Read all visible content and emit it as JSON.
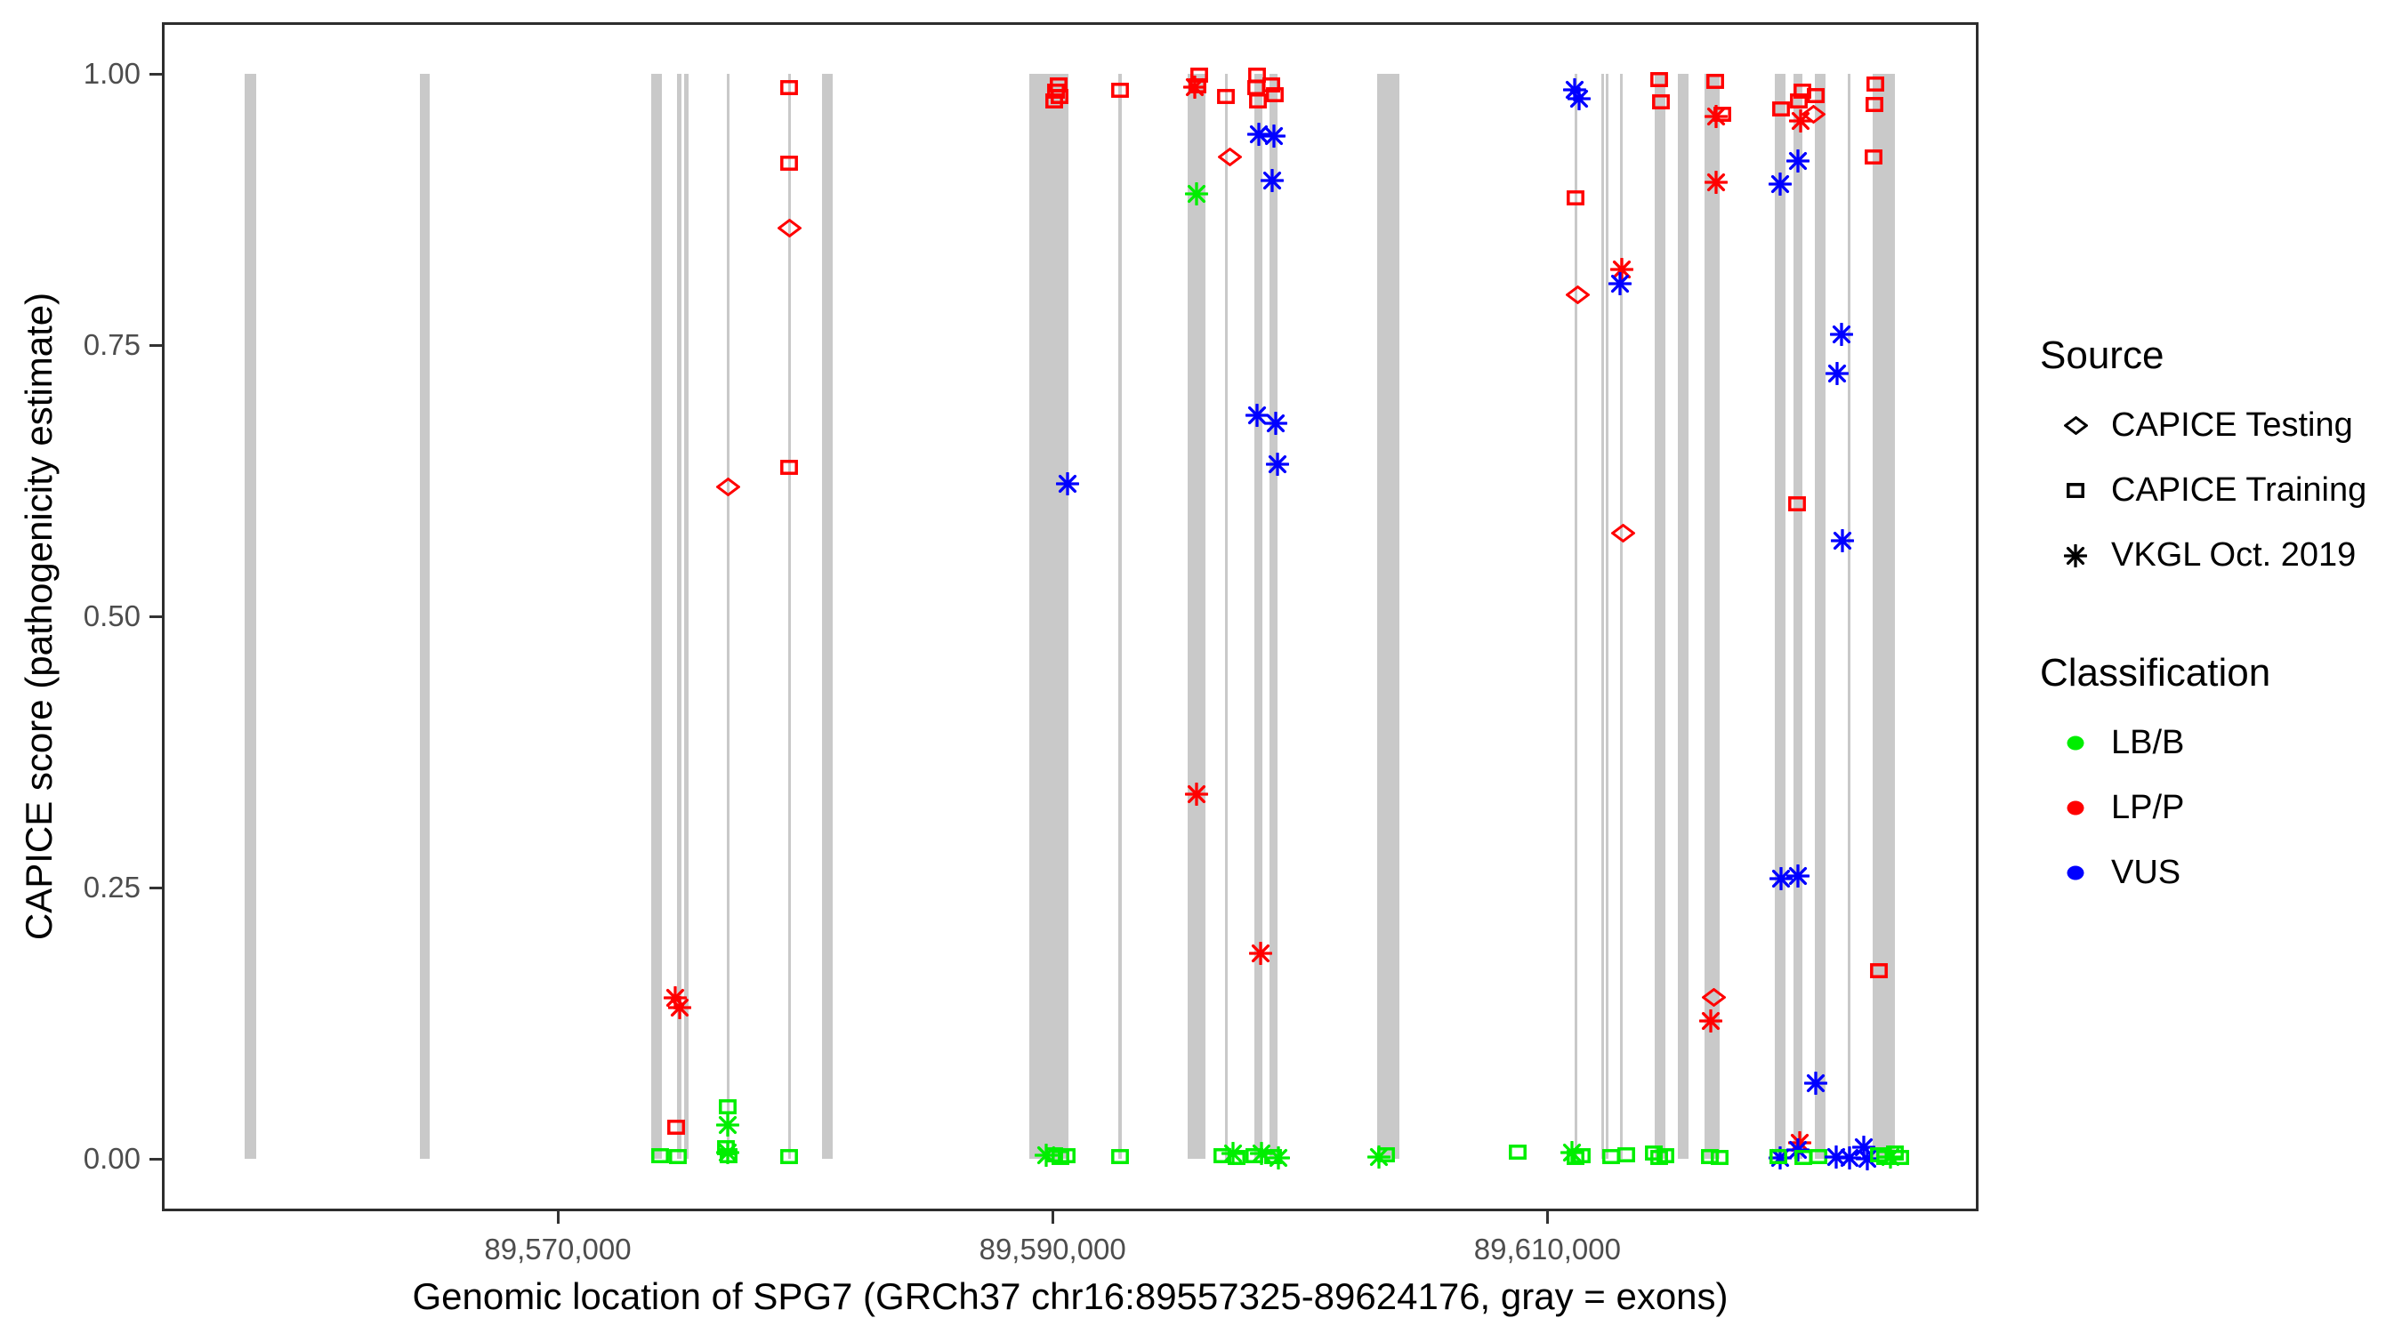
{
  "chart_data": {
    "type": "scatter",
    "title": "",
    "xlabel": "Genomic location of SPG7 (GRCh37 chr16:89557325-89624176, gray = exons)",
    "ylabel": "CAPICE score (pathogenicity estimate)",
    "xlim": [
      89553990,
      89627450
    ],
    "ylim": [
      -0.05,
      1.05
    ],
    "grid": "off",
    "x_ticks": [
      {
        "value": 89570000,
        "label": "89,570,000"
      },
      {
        "value": 89590000,
        "label": "89,590,000"
      },
      {
        "value": 89610000,
        "label": "89,610,000"
      }
    ],
    "y_ticks": [
      {
        "value": 0.0,
        "label": "0.00"
      },
      {
        "value": 0.25,
        "label": "0.25"
      },
      {
        "value": 0.5,
        "label": "0.50"
      },
      {
        "value": 0.75,
        "label": "0.75"
      },
      {
        "value": 1.0,
        "label": "1.00"
      }
    ],
    "legend": {
      "position": "right",
      "source": {
        "title": "Source",
        "items": [
          {
            "shape": "diamond",
            "label": "CAPICE Testing"
          },
          {
            "shape": "square",
            "label": "CAPICE Training"
          },
          {
            "shape": "asterisk",
            "label": "VKGL Oct. 2019"
          }
        ]
      },
      "classification": {
        "title": "Classification",
        "items": [
          {
            "class": "LB/B",
            "label": "LB/B"
          },
          {
            "class": "LP/P",
            "label": "LP/P"
          },
          {
            "class": "VUS",
            "label": "VUS"
          }
        ]
      }
    },
    "class_colors": {
      "LB/B": "#00ee00",
      "LP/P": "#ff0000",
      "VUS": "#0000ff"
    },
    "source_shapes": {
      "testing": "diamond",
      "training": "square",
      "vkgl": "asterisk"
    },
    "source_labels": {
      "testing": "CAPICE Testing",
      "training": "CAPICE Training",
      "vkgl": "VKGL Oct. 2019"
    },
    "exon_color": "#c9c9c9",
    "exons": [
      {
        "pos": 89557590,
        "width_bp": 470
      },
      {
        "pos": 89564640,
        "width_bp": 400
      },
      {
        "pos": 89573990,
        "width_bp": 430
      },
      {
        "pos": 89574890,
        "width_bp": 180
      },
      {
        "pos": 89575180,
        "width_bp": 180
      },
      {
        "pos": 89576870,
        "width_bp": 110
      },
      {
        "pos": 89579350,
        "width_bp": 110
      },
      {
        "pos": 89580900,
        "width_bp": 430
      },
      {
        "pos": 89589860,
        "width_bp": 1580
      },
      {
        "pos": 89592730,
        "width_bp": 140
      },
      {
        "pos": 89595830,
        "width_bp": 720
      },
      {
        "pos": 89597010,
        "width_bp": 110
      },
      {
        "pos": 89598310,
        "width_bp": 320
      },
      {
        "pos": 89598920,
        "width_bp": 320
      },
      {
        "pos": 89603560,
        "width_bp": 900
      },
      {
        "pos": 89611150,
        "width_bp": 110
      },
      {
        "pos": 89612230,
        "width_bp": 100
      },
      {
        "pos": 89612410,
        "width_bp": 100
      },
      {
        "pos": 89612990,
        "width_bp": 110
      },
      {
        "pos": 89614560,
        "width_bp": 430
      },
      {
        "pos": 89615500,
        "width_bp": 430
      },
      {
        "pos": 89616650,
        "width_bp": 600
      },
      {
        "pos": 89619420,
        "width_bp": 430
      },
      {
        "pos": 89620110,
        "width_bp": 360
      },
      {
        "pos": 89621040,
        "width_bp": 430
      },
      {
        "pos": 89622190,
        "width_bp": 110
      },
      {
        "pos": 89623590,
        "width_bp": 900
      }
    ],
    "points": [
      {
        "pos": 89574140,
        "score": 0.003,
        "src": "training",
        "cls": "LB/B"
      },
      {
        "pos": 89574860,
        "score": 0.002,
        "src": "training",
        "cls": "LB/B"
      },
      {
        "pos": 89574750,
        "score": 0.148,
        "src": "vkgl",
        "cls": "LP/P"
      },
      {
        "pos": 89574930,
        "score": 0.139,
        "src": "vkgl",
        "cls": "LP/P"
      },
      {
        "pos": 89574790,
        "score": 0.029,
        "src": "training",
        "cls": "LP/P"
      },
      {
        "pos": 89576870,
        "score": 0.619,
        "src": "testing",
        "cls": "LP/P"
      },
      {
        "pos": 89576850,
        "score": 0.048,
        "src": "training",
        "cls": "LB/B"
      },
      {
        "pos": 89576850,
        "score": 0.031,
        "src": "vkgl",
        "cls": "LB/B"
      },
      {
        "pos": 89576800,
        "score": 0.01,
        "src": "training",
        "cls": "LB/B"
      },
      {
        "pos": 89576920,
        "score": 0.003,
        "src": "training",
        "cls": "LB/B"
      },
      {
        "pos": 89576870,
        "score": 0.006,
        "src": "vkgl",
        "cls": "LB/B"
      },
      {
        "pos": 89579350,
        "score": 0.987,
        "src": "training",
        "cls": "LP/P"
      },
      {
        "pos": 89579350,
        "score": 0.918,
        "src": "training",
        "cls": "LP/P"
      },
      {
        "pos": 89579350,
        "score": 0.858,
        "src": "testing",
        "cls": "LP/P"
      },
      {
        "pos": 89579350,
        "score": 0.637,
        "src": "training",
        "cls": "LP/P"
      },
      {
        "pos": 89579350,
        "score": 0.002,
        "src": "training",
        "cls": "LB/B"
      },
      {
        "pos": 89590250,
        "score": 0.99,
        "src": "training",
        "cls": "LP/P"
      },
      {
        "pos": 89590140,
        "score": 0.984,
        "src": "training",
        "cls": "LP/P"
      },
      {
        "pos": 89590290,
        "score": 0.979,
        "src": "training",
        "cls": "LP/P"
      },
      {
        "pos": 89590070,
        "score": 0.975,
        "src": "training",
        "cls": "LP/P"
      },
      {
        "pos": 89590610,
        "score": 0.622,
        "src": "vkgl",
        "cls": "VUS"
      },
      {
        "pos": 89589750,
        "score": 0.003,
        "src": "vkgl",
        "cls": "LB/B"
      },
      {
        "pos": 89590070,
        "score": 0.004,
        "src": "training",
        "cls": "LB/B"
      },
      {
        "pos": 89590320,
        "score": 0.001,
        "src": "training",
        "cls": "LB/B"
      },
      {
        "pos": 89590580,
        "score": 0.003,
        "src": "training",
        "cls": "LB/B"
      },
      {
        "pos": 89592730,
        "score": 0.985,
        "src": "training",
        "cls": "LP/P"
      },
      {
        "pos": 89592730,
        "score": 0.002,
        "src": "training",
        "cls": "LB/B"
      },
      {
        "pos": 89595940,
        "score": 0.999,
        "src": "training",
        "cls": "LP/P"
      },
      {
        "pos": 89595860,
        "score": 0.989,
        "src": "training",
        "cls": "LP/P"
      },
      {
        "pos": 89595750,
        "score": 0.988,
        "src": "vkgl",
        "cls": "LP/P"
      },
      {
        "pos": 89595830,
        "score": 0.889,
        "src": "vkgl",
        "cls": "LB/B"
      },
      {
        "pos": 89595830,
        "score": 0.336,
        "src": "vkgl",
        "cls": "LP/P"
      },
      {
        "pos": 89597010,
        "score": 0.979,
        "src": "training",
        "cls": "LP/P"
      },
      {
        "pos": 89597160,
        "score": 0.923,
        "src": "testing",
        "cls": "LP/P"
      },
      {
        "pos": 89596870,
        "score": 0.003,
        "src": "training",
        "cls": "LB/B"
      },
      {
        "pos": 89597440,
        "score": 0.001,
        "src": "training",
        "cls": "LB/B"
      },
      {
        "pos": 89597300,
        "score": 0.005,
        "src": "vkgl",
        "cls": "LB/B"
      },
      {
        "pos": 89598270,
        "score": 0.999,
        "src": "training",
        "cls": "LP/P"
      },
      {
        "pos": 89598230,
        "score": 0.987,
        "src": "training",
        "cls": "LP/P"
      },
      {
        "pos": 89598310,
        "score": 0.975,
        "src": "training",
        "cls": "LP/P"
      },
      {
        "pos": 89598340,
        "score": 0.944,
        "src": "vkgl",
        "cls": "VUS"
      },
      {
        "pos": 89598270,
        "score": 0.685,
        "src": "vkgl",
        "cls": "VUS"
      },
      {
        "pos": 89598410,
        "score": 0.189,
        "src": "vkgl",
        "cls": "LP/P"
      },
      {
        "pos": 89598170,
        "score": 0.003,
        "src": "training",
        "cls": "LB/B"
      },
      {
        "pos": 89598450,
        "score": 0.005,
        "src": "vkgl",
        "cls": "LB/B"
      },
      {
        "pos": 89598850,
        "score": 0.99,
        "src": "training",
        "cls": "LP/P"
      },
      {
        "pos": 89598990,
        "score": 0.981,
        "src": "training",
        "cls": "LP/P"
      },
      {
        "pos": 89598960,
        "score": 0.943,
        "src": "vkgl",
        "cls": "VUS"
      },
      {
        "pos": 89598890,
        "score": 0.902,
        "src": "vkgl",
        "cls": "VUS"
      },
      {
        "pos": 89599030,
        "score": 0.678,
        "src": "vkgl",
        "cls": "VUS"
      },
      {
        "pos": 89599100,
        "score": 0.64,
        "src": "vkgl",
        "cls": "VUS"
      },
      {
        "pos": 89598920,
        "score": 0.002,
        "src": "training",
        "cls": "LB/B"
      },
      {
        "pos": 89599120,
        "score": 0.001,
        "src": "vkgl",
        "cls": "LB/B"
      },
      {
        "pos": 89603200,
        "score": 0.002,
        "src": "vkgl",
        "cls": "LB/B"
      },
      {
        "pos": 89603480,
        "score": 0.004,
        "src": "training",
        "cls": "LB/B"
      },
      {
        "pos": 89608780,
        "score": 0.006,
        "src": "training",
        "cls": "LB/B"
      },
      {
        "pos": 89611110,
        "score": 0.985,
        "src": "vkgl",
        "cls": "VUS"
      },
      {
        "pos": 89611290,
        "score": 0.977,
        "src": "vkgl",
        "cls": "VUS"
      },
      {
        "pos": 89611150,
        "score": 0.886,
        "src": "training",
        "cls": "LP/P"
      },
      {
        "pos": 89611220,
        "score": 0.796,
        "src": "testing",
        "cls": "LP/P"
      },
      {
        "pos": 89611000,
        "score": 0.006,
        "src": "vkgl",
        "cls": "LB/B"
      },
      {
        "pos": 89611150,
        "score": 0.001,
        "src": "training",
        "cls": "LB/B"
      },
      {
        "pos": 89611400,
        "score": 0.003,
        "src": "training",
        "cls": "LB/B"
      },
      {
        "pos": 89612990,
        "score": 0.82,
        "src": "vkgl",
        "cls": "LP/P"
      },
      {
        "pos": 89612930,
        "score": 0.807,
        "src": "vkgl",
        "cls": "VUS"
      },
      {
        "pos": 89613050,
        "score": 0.577,
        "src": "testing",
        "cls": "LP/P"
      },
      {
        "pos": 89612590,
        "score": 0.002,
        "src": "training",
        "cls": "LB/B"
      },
      {
        "pos": 89613180,
        "score": 0.004,
        "src": "training",
        "cls": "LB/B"
      },
      {
        "pos": 89614500,
        "score": 0.995,
        "src": "training",
        "cls": "LP/P"
      },
      {
        "pos": 89614570,
        "score": 0.974,
        "src": "training",
        "cls": "LP/P"
      },
      {
        "pos": 89614300,
        "score": 0.005,
        "src": "training",
        "cls": "LB/B"
      },
      {
        "pos": 89614520,
        "score": 0.001,
        "src": "training",
        "cls": "LB/B"
      },
      {
        "pos": 89614750,
        "score": 0.003,
        "src": "training",
        "cls": "LB/B"
      },
      {
        "pos": 89616780,
        "score": 0.993,
        "src": "training",
        "cls": "LP/P"
      },
      {
        "pos": 89617060,
        "score": 0.963,
        "src": "training",
        "cls": "LP/P"
      },
      {
        "pos": 89616830,
        "score": 0.961,
        "src": "vkgl",
        "cls": "LP/P"
      },
      {
        "pos": 89616800,
        "score": 0.9,
        "src": "vkgl",
        "cls": "LP/P"
      },
      {
        "pos": 89616730,
        "score": 0.149,
        "src": "testing",
        "cls": "LP/P"
      },
      {
        "pos": 89616600,
        "score": 0.127,
        "src": "vkgl",
        "cls": "LP/P"
      },
      {
        "pos": 89616550,
        "score": 0.002,
        "src": "training",
        "cls": "LB/B"
      },
      {
        "pos": 89616950,
        "score": 0.001,
        "src": "training",
        "cls": "LB/B"
      },
      {
        "pos": 89619440,
        "score": 0.968,
        "src": "training",
        "cls": "LP/P"
      },
      {
        "pos": 89619400,
        "score": 0.898,
        "src": "vkgl",
        "cls": "VUS"
      },
      {
        "pos": 89619440,
        "score": 0.258,
        "src": "vkgl",
        "cls": "VUS"
      },
      {
        "pos": 89619400,
        "score": 0.001,
        "src": "vkgl",
        "cls": "VUS"
      },
      {
        "pos": 89619330,
        "score": 0.002,
        "src": "training",
        "cls": "LB/B"
      },
      {
        "pos": 89620290,
        "score": 0.984,
        "src": "training",
        "cls": "LP/P"
      },
      {
        "pos": 89620150,
        "score": 0.975,
        "src": "training",
        "cls": "LP/P"
      },
      {
        "pos": 89620220,
        "score": 0.957,
        "src": "vkgl",
        "cls": "LP/P"
      },
      {
        "pos": 89620110,
        "score": 0.92,
        "src": "vkgl",
        "cls": "VUS"
      },
      {
        "pos": 89620100,
        "score": 0.604,
        "src": "training",
        "cls": "LP/P"
      },
      {
        "pos": 89620120,
        "score": 0.261,
        "src": "vkgl",
        "cls": "VUS"
      },
      {
        "pos": 89620180,
        "score": 0.015,
        "src": "vkgl",
        "cls": "LP/P"
      },
      {
        "pos": 89620130,
        "score": 0.008,
        "src": "vkgl",
        "cls": "VUS"
      },
      {
        "pos": 89620330,
        "score": 0.001,
        "src": "training",
        "cls": "LB/B"
      },
      {
        "pos": 89620740,
        "score": 0.963,
        "src": "testing",
        "cls": "LP/P"
      },
      {
        "pos": 89620830,
        "score": 0.98,
        "src": "training",
        "cls": "LP/P"
      },
      {
        "pos": 89620830,
        "score": 0.07,
        "src": "vkgl",
        "cls": "VUS"
      },
      {
        "pos": 89620940,
        "score": 0.002,
        "src": "training",
        "cls": "LB/B"
      },
      {
        "pos": 89621870,
        "score": 0.76,
        "src": "vkgl",
        "cls": "VUS"
      },
      {
        "pos": 89621690,
        "score": 0.724,
        "src": "vkgl",
        "cls": "VUS"
      },
      {
        "pos": 89621910,
        "score": 0.57,
        "src": "vkgl",
        "cls": "VUS"
      },
      {
        "pos": 89621660,
        "score": 0.002,
        "src": "vkgl",
        "cls": "VUS"
      },
      {
        "pos": 89622200,
        "score": 0.001,
        "src": "vkgl",
        "cls": "VUS"
      },
      {
        "pos": 89622790,
        "score": 0.011,
        "src": "vkgl",
        "cls": "VUS"
      },
      {
        "pos": 89622930,
        "score": 0.0,
        "src": "vkgl",
        "cls": "VUS"
      },
      {
        "pos": 89623250,
        "score": 0.991,
        "src": "training",
        "cls": "LP/P"
      },
      {
        "pos": 89623210,
        "score": 0.972,
        "src": "training",
        "cls": "LP/P"
      },
      {
        "pos": 89623180,
        "score": 0.923,
        "src": "training",
        "cls": "LP/P"
      },
      {
        "pos": 89623390,
        "score": 0.173,
        "src": "training",
        "cls": "LP/P"
      },
      {
        "pos": 89623400,
        "score": 0.004,
        "src": "training",
        "cls": "LB/B"
      },
      {
        "pos": 89623650,
        "score": 0.001,
        "src": "training",
        "cls": "LB/B"
      },
      {
        "pos": 89623850,
        "score": 0.002,
        "src": "vkgl",
        "cls": "LB/B"
      },
      {
        "pos": 89624050,
        "score": 0.005,
        "src": "training",
        "cls": "LB/B"
      },
      {
        "pos": 89624250,
        "score": 0.001,
        "src": "training",
        "cls": "LB/B"
      }
    ]
  }
}
